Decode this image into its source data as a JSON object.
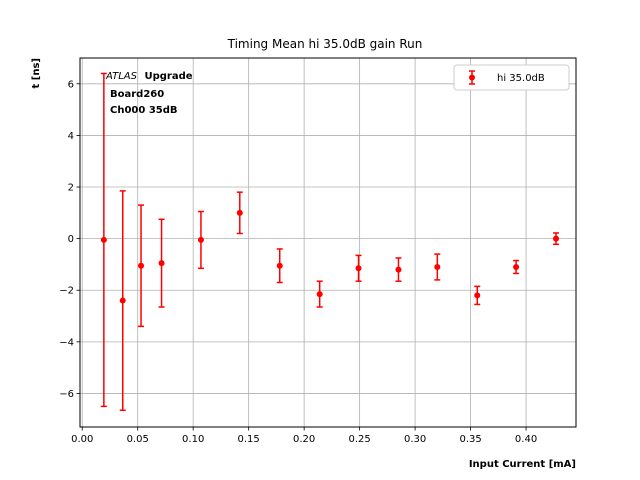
{
  "chart_data": {
    "type": "scatter",
    "title": "Timing Mean hi 35.0dB gain Run",
    "xlabel": "Input Current [mA]",
    "ylabel": "t [ns]",
    "xlim": [
      -0.002,
      0.445
    ],
    "ylim": [
      -7.3,
      7.0
    ],
    "xticks": [
      0.0,
      0.05,
      0.1,
      0.15,
      0.2,
      0.25,
      0.3,
      0.35,
      0.4
    ],
    "xtick_labels": [
      "0.00",
      "0.05",
      "0.10",
      "0.15",
      "0.20",
      "0.25",
      "0.30",
      "0.35",
      "0.40"
    ],
    "yticks": [
      -6,
      -4,
      -2,
      0,
      2,
      4,
      6
    ],
    "ytick_labels": [
      "−6",
      "−4",
      "−2",
      "0",
      "2",
      "4",
      "6"
    ],
    "grid": true,
    "legend_position": "top-right",
    "series": [
      {
        "name": "hi 35.0dB",
        "color": "#ff0000",
        "marker": "circle",
        "points": [
          {
            "x": 0.0195,
            "y": -0.05,
            "err": 6.45
          },
          {
            "x": 0.0365,
            "y": -2.4,
            "err": 4.25
          },
          {
            "x": 0.053,
            "y": -1.05,
            "err": 2.35
          },
          {
            "x": 0.0715,
            "y": -0.95,
            "err": 1.7
          },
          {
            "x": 0.107,
            "y": -0.05,
            "err": 1.1
          },
          {
            "x": 0.142,
            "y": 1.0,
            "err": 0.8
          },
          {
            "x": 0.178,
            "y": -1.05,
            "err": 0.65
          },
          {
            "x": 0.214,
            "y": -2.15,
            "err": 0.5
          },
          {
            "x": 0.249,
            "y": -1.15,
            "err": 0.5
          },
          {
            "x": 0.285,
            "y": -1.2,
            "err": 0.45
          },
          {
            "x": 0.32,
            "y": -1.1,
            "err": 0.5
          },
          {
            "x": 0.356,
            "y": -2.2,
            "err": 0.35
          },
          {
            "x": 0.391,
            "y": -1.1,
            "err": 0.25
          },
          {
            "x": 0.427,
            "y": 0.0,
            "err": 0.22
          }
        ]
      }
    ],
    "annotations": {
      "atlas_italic": "ATLAS",
      "atlas_bold": "Upgrade",
      "line2": "Board260",
      "line3": "Ch000 35dB"
    }
  }
}
